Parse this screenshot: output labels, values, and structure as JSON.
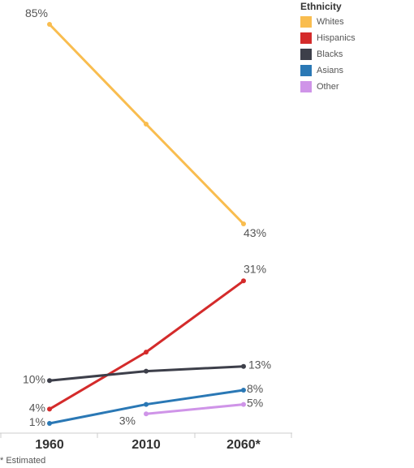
{
  "chart_data": {
    "type": "line",
    "categories": [
      "1960",
      "2010",
      "2060*"
    ],
    "x": [
      1960,
      2010,
      2060
    ],
    "ylim": [
      0,
      85
    ],
    "grid": false,
    "legend_title": "Ethnicity",
    "legend_position": "top-right",
    "series": [
      {
        "name": "Whites",
        "color": "#f9bd4f",
        "values": [
          85,
          64,
          43
        ],
        "labels": [
          "85%",
          "",
          "43%"
        ]
      },
      {
        "name": "Hispanics",
        "color": "#d42b2b",
        "values": [
          4,
          16,
          31
        ],
        "labels": [
          "4%",
          "",
          "31%"
        ]
      },
      {
        "name": "Blacks",
        "color": "#3d3f4a",
        "values": [
          10,
          12,
          13
        ],
        "labels": [
          "10%",
          "",
          "13%"
        ]
      },
      {
        "name": "Asians",
        "color": "#2a78b5",
        "values": [
          1,
          5,
          8
        ],
        "labels": [
          "1%",
          "",
          "8%"
        ]
      },
      {
        "name": "Other",
        "color": "#cf94e8",
        "values": [
          null,
          3,
          5
        ],
        "labels": [
          "",
          "3%",
          "5%"
        ]
      }
    ]
  },
  "footnote": "* Estimated"
}
